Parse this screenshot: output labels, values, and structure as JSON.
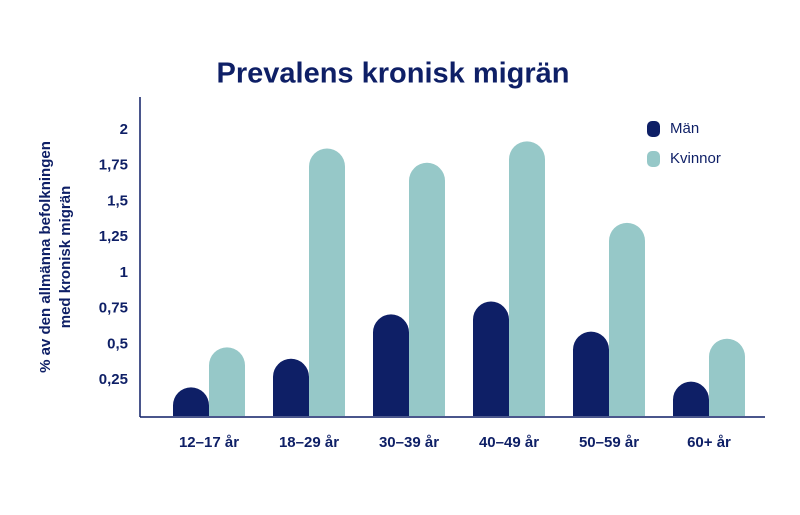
{
  "chart_data": {
    "type": "bar",
    "title": "Prevalens kronisk migrän",
    "y_label": [
      "% av den allmänna befolkningen",
      "med kronisk migrän"
    ],
    "categories": [
      "12–17 år",
      "18–29 år",
      "30–39 år",
      "40–49 år",
      "50–59 år",
      "60+ år"
    ],
    "series": [
      {
        "name": "Män",
        "color": "#0e1f66",
        "values": [
          0.2,
          0.4,
          0.71,
          0.8,
          0.59,
          0.24
        ]
      },
      {
        "name": "Kvinnor",
        "color": "#96c8c8",
        "values": [
          0.48,
          1.87,
          1.77,
          1.92,
          1.35,
          0.54
        ]
      }
    ],
    "ylim": [
      0,
      2.23
    ],
    "yticks": [
      {
        "value": 0.25,
        "label": "0,25"
      },
      {
        "value": 0.5,
        "label": "0,5"
      },
      {
        "value": 0.75,
        "label": "0,75"
      },
      1,
      {
        "value": 1.25,
        "label": "1,25"
      },
      {
        "value": 1.5,
        "label": "1,5"
      },
      {
        "value": 1.75,
        "label": "1,75"
      },
      2
    ],
    "legend": "top-right"
  }
}
